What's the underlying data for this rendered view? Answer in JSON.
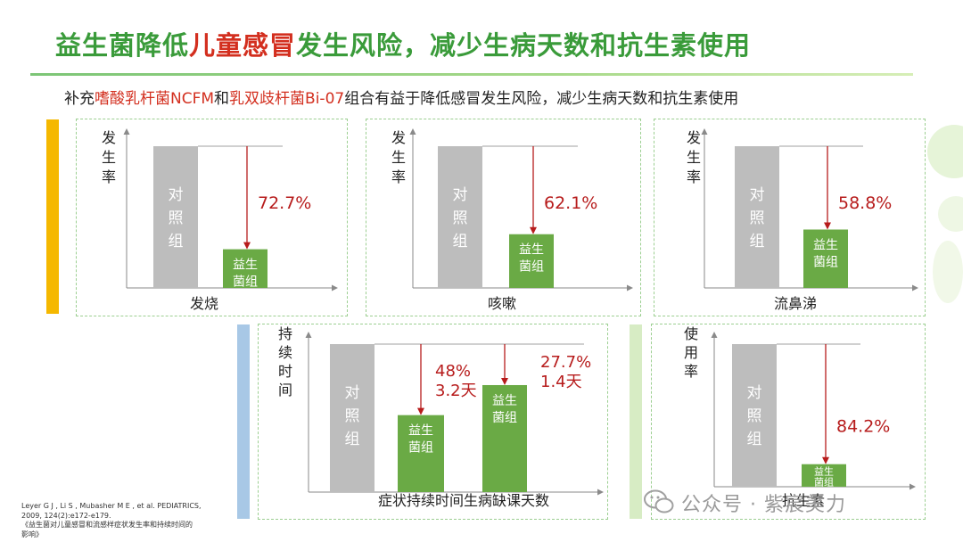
{
  "title": {
    "pre": "益生菌降低",
    "highlight": "儿童感冒",
    "post": "发生风险，减少生病天数和抗生素使用"
  },
  "subtitle": {
    "p1": "补充",
    "h1": "嗜酸乳杆菌NCFM",
    "p2": "和",
    "h2": "乳双歧杆菌Bi-07",
    "p3": "组合有益于降低感冒发生风险，减少生病天数和抗生素使用"
  },
  "colors": {
    "control": "#bdbdbd",
    "probiotic": "#6aaa45",
    "arrow": "#b71c1c",
    "accent_red": "#d32f1f",
    "title_green": "#3a9b3a"
  },
  "chart_data": [
    {
      "type": "bar",
      "ylabel": "发生率",
      "xlabel": "发烧",
      "categories": [
        "对照组",
        "益生菌组"
      ],
      "reduction_label": "72.7%",
      "values": [
        100,
        27.3
      ]
    },
    {
      "type": "bar",
      "ylabel": "发生率",
      "xlabel": "咳嗽",
      "categories": [
        "对照组",
        "益生菌组"
      ],
      "reduction_label": "62.1%",
      "values": [
        100,
        37.9
      ]
    },
    {
      "type": "bar",
      "ylabel": "发生率",
      "xlabel": "流鼻涕",
      "categories": [
        "对照组",
        "益生菌组"
      ],
      "reduction_label": "58.8%",
      "values": [
        100,
        41.2
      ]
    },
    {
      "type": "bar",
      "ylabel": "持续时间",
      "xlabel": "症状持续时间生病缺课天数",
      "categories": [
        "对照组",
        "益生菌组",
        "益生菌组"
      ],
      "reduction_labels": [
        [
          "48%",
          "3.2天"
        ],
        [
          "27.7%",
          "1.4天"
        ]
      ],
      "values": [
        100,
        52,
        72.3
      ]
    },
    {
      "type": "bar",
      "ylabel": "使用率",
      "xlabel": "抗生素",
      "categories": [
        "对照组",
        "益生菌组"
      ],
      "reduction_label": "84.2%",
      "values": [
        100,
        15.8
      ]
    }
  ],
  "reference": {
    "line1": "Leyer G J , Li S , Mubasher M E , et al. PEDIATRICS,",
    "line2": "2009, 124(2):e172-e179.",
    "line3": "《益生菌对儿童感冒和流感样症状发生率和持续时间的",
    "line4": "影响》"
  },
  "watermark": "公众号 · 紫宸美力"
}
